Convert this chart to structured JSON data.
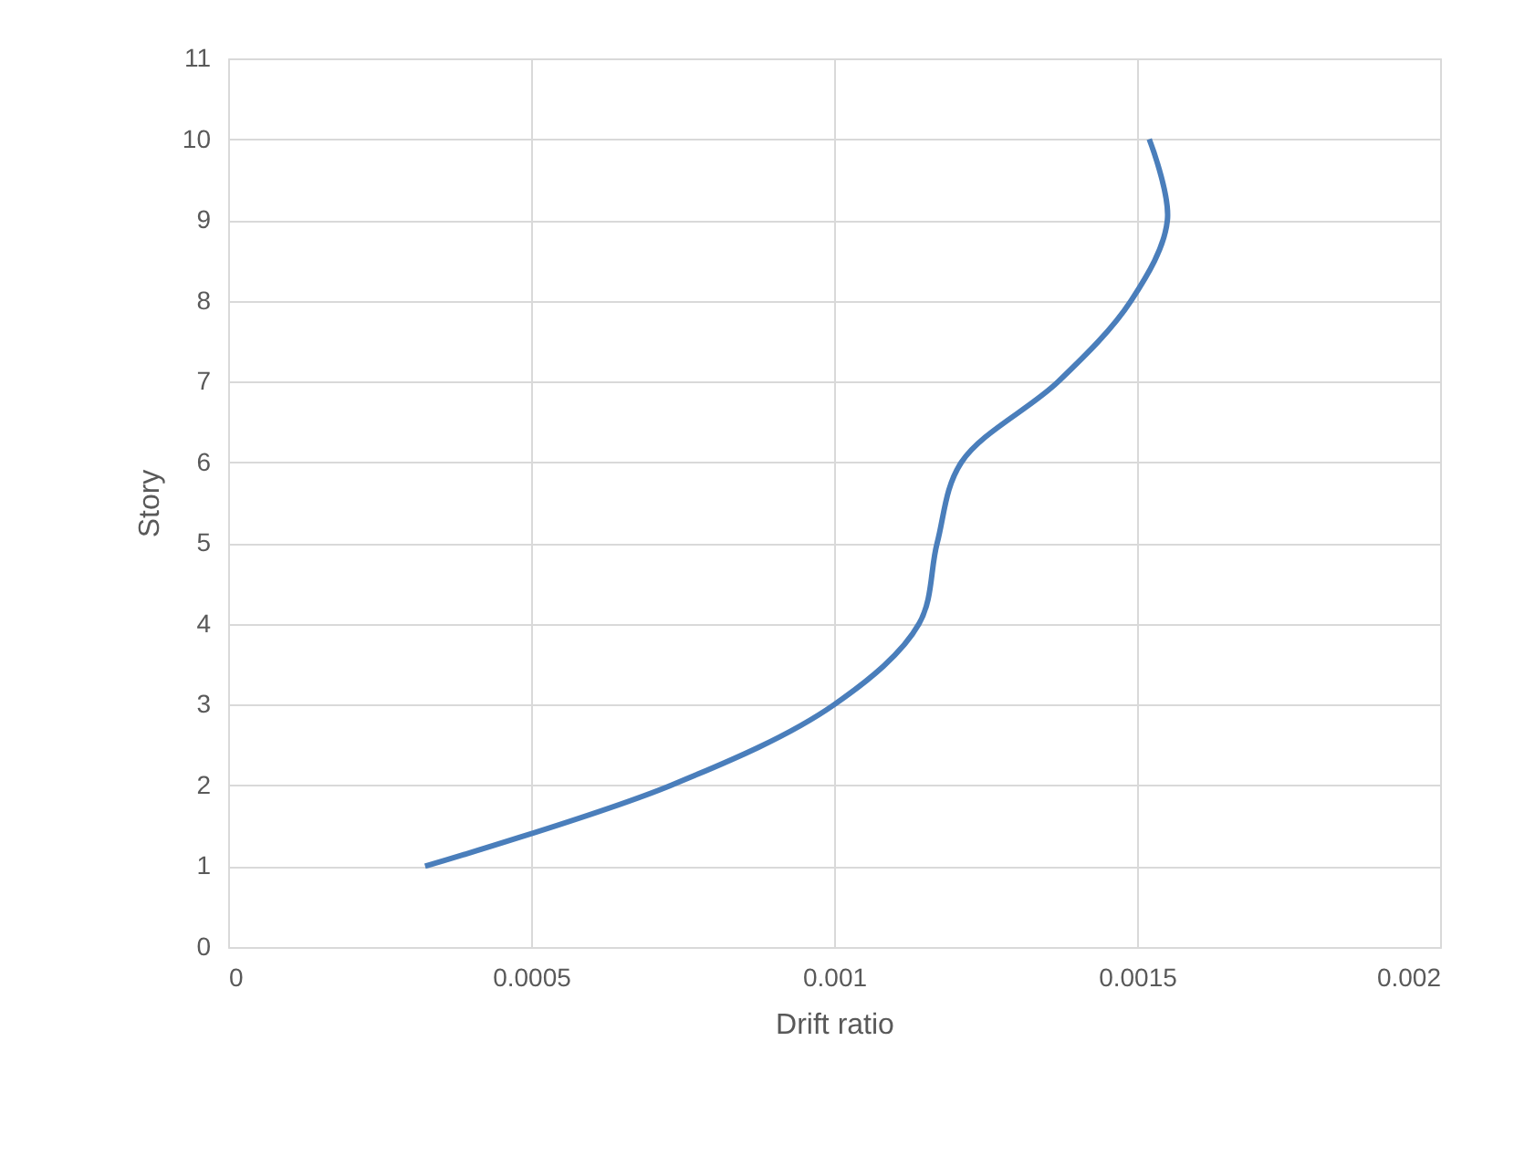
{
  "chart_data": {
    "type": "line",
    "xlabel": "Drift ratio",
    "ylabel": "Story",
    "x": [
      0.000325,
      0.00073,
      0.001,
      0.00114,
      0.00117,
      0.00121,
      0.00137,
      0.00149,
      0.00155,
      0.00152
    ],
    "series": [
      {
        "color": "#4a7ebb",
        "values": [
          1,
          2,
          3,
          4,
          5,
          6,
          7,
          8,
          9,
          10
        ]
      }
    ],
    "xlim": [
      0,
      0.002
    ],
    "xticks": [
      0,
      0.0005,
      0.001,
      0.0015,
      0.002
    ],
    "ylim": [
      0,
      11
    ],
    "yticks": [
      0,
      1,
      2,
      3,
      4,
      5,
      6,
      7,
      8,
      9,
      10,
      11
    ],
    "grid": true,
    "marker": "none",
    "line_style": "solid"
  }
}
